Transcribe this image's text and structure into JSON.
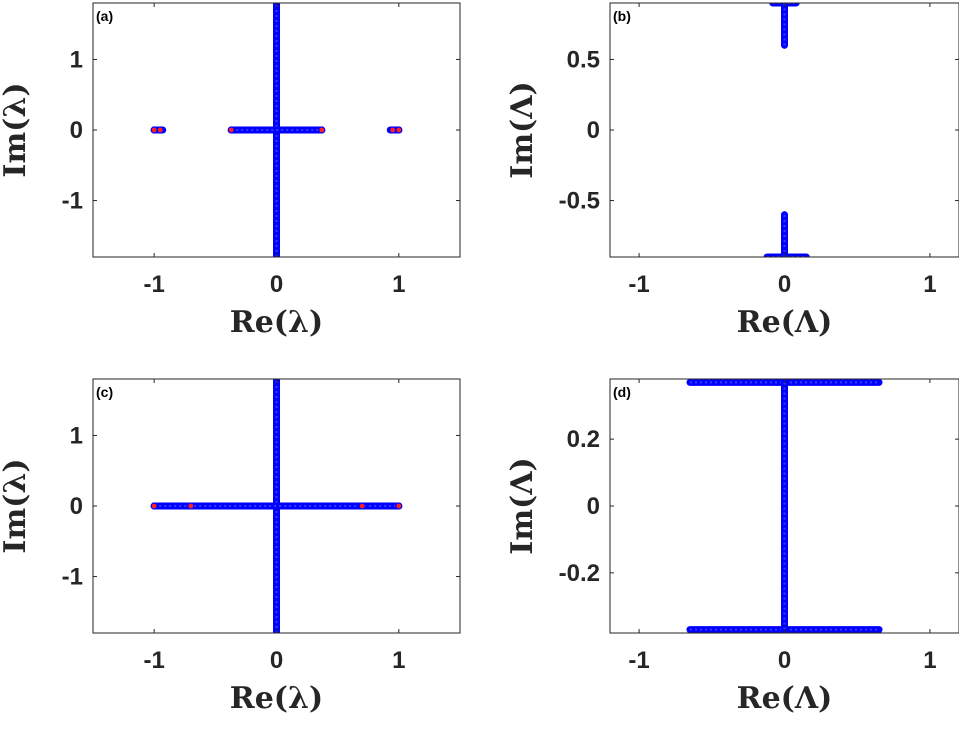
{
  "colors": {
    "marker": "#0000ff",
    "marker_edge": "#1a1aff",
    "special": "#ff2020",
    "axis": "#262626"
  },
  "chart_data": [
    {
      "type": "scatter",
      "panel_label": "(a)",
      "xlabel": "Re(λ)",
      "ylabel": "Im(λ)",
      "xlim": [
        -1.5,
        1.5
      ],
      "ylim": [
        -1.8,
        1.8
      ],
      "xticks": [
        -1,
        0,
        1
      ],
      "xticklabels": [
        "-1",
        "0",
        "1"
      ],
      "yticks": [
        -1,
        0,
        1
      ],
      "yticklabels": [
        "-1",
        "0",
        "1"
      ],
      "segments": [
        {
          "x": [
            0,
            0
          ],
          "y": [
            -1.8,
            1.8
          ]
        },
        {
          "x": [
            -0.37,
            0.37
          ],
          "y": [
            0,
            0
          ]
        },
        {
          "x": [
            -1.0,
            -0.93
          ],
          "y": [
            0,
            0
          ]
        },
        {
          "x": [
            0.93,
            1.0
          ],
          "y": [
            0,
            0
          ]
        }
      ],
      "special_points": [
        [
          -1.0,
          0
        ],
        [
          -0.95,
          0
        ],
        [
          -0.37,
          0
        ],
        [
          0.37,
          0
        ],
        [
          0.95,
          0
        ],
        [
          1.0,
          0
        ]
      ]
    },
    {
      "type": "scatter",
      "panel_label": "(b)",
      "xlabel": "Re(Λ)",
      "ylabel": "Im(Λ)",
      "xlim": [
        -1.2,
        1.2
      ],
      "ylim": [
        -0.9,
        0.9
      ],
      "xticks": [
        -1,
        0,
        1
      ],
      "xticklabels": [
        "-1",
        "0",
        "1"
      ],
      "yticks": [
        -0.5,
        0,
        0.5
      ],
      "yticklabels": [
        "-0.5",
        "0",
        "0.5"
      ],
      "segments": [
        {
          "x": [
            -0.08,
            0.08
          ],
          "y": [
            0.9,
            0.9
          ]
        },
        {
          "x": [
            0,
            0
          ],
          "y": [
            0.6,
            0.9
          ]
        },
        {
          "x": [
            -0.12,
            0.15
          ],
          "y": [
            -0.9,
            -0.9
          ]
        },
        {
          "x": [
            0,
            0
          ],
          "y": [
            -0.9,
            -0.6
          ]
        }
      ],
      "special_points": []
    },
    {
      "type": "scatter",
      "panel_label": "(c)",
      "xlabel": "Re(λ)",
      "ylabel": "Im(λ)",
      "xlim": [
        -1.5,
        1.5
      ],
      "ylim": [
        -1.8,
        1.8
      ],
      "xticks": [
        -1,
        0,
        1
      ],
      "xticklabels": [
        "-1",
        "0",
        "1"
      ],
      "yticks": [
        -1,
        0,
        1
      ],
      "yticklabels": [
        "-1",
        "0",
        "1"
      ],
      "segments": [
        {
          "x": [
            0,
            0
          ],
          "y": [
            -1.8,
            1.8
          ]
        },
        {
          "x": [
            -1.0,
            1.0
          ],
          "y": [
            0,
            0
          ]
        }
      ],
      "special_points": [
        [
          -1.0,
          0
        ],
        [
          -0.7,
          0
        ],
        [
          0.7,
          0
        ],
        [
          1.0,
          0
        ]
      ]
    },
    {
      "type": "scatter",
      "panel_label": "(d)",
      "xlabel": "Re(Λ)",
      "ylabel": "Im(Λ)",
      "xlim": [
        -1.2,
        1.2
      ],
      "ylim": [
        -0.38,
        0.38
      ],
      "xticks": [
        -1,
        0,
        1
      ],
      "xticklabels": [
        "-1",
        "0",
        "1"
      ],
      "yticks": [
        -0.2,
        0,
        0.2
      ],
      "yticklabels": [
        "-0.2",
        "0",
        "0.2"
      ],
      "segments": [
        {
          "x": [
            -0.65,
            0.65
          ],
          "y": [
            0.37,
            0.37
          ]
        },
        {
          "x": [
            -0.65,
            0.65
          ],
          "y": [
            -0.37,
            -0.37
          ]
        },
        {
          "x": [
            0,
            0
          ],
          "y": [
            -0.37,
            0.37
          ]
        }
      ],
      "special_points": []
    }
  ]
}
